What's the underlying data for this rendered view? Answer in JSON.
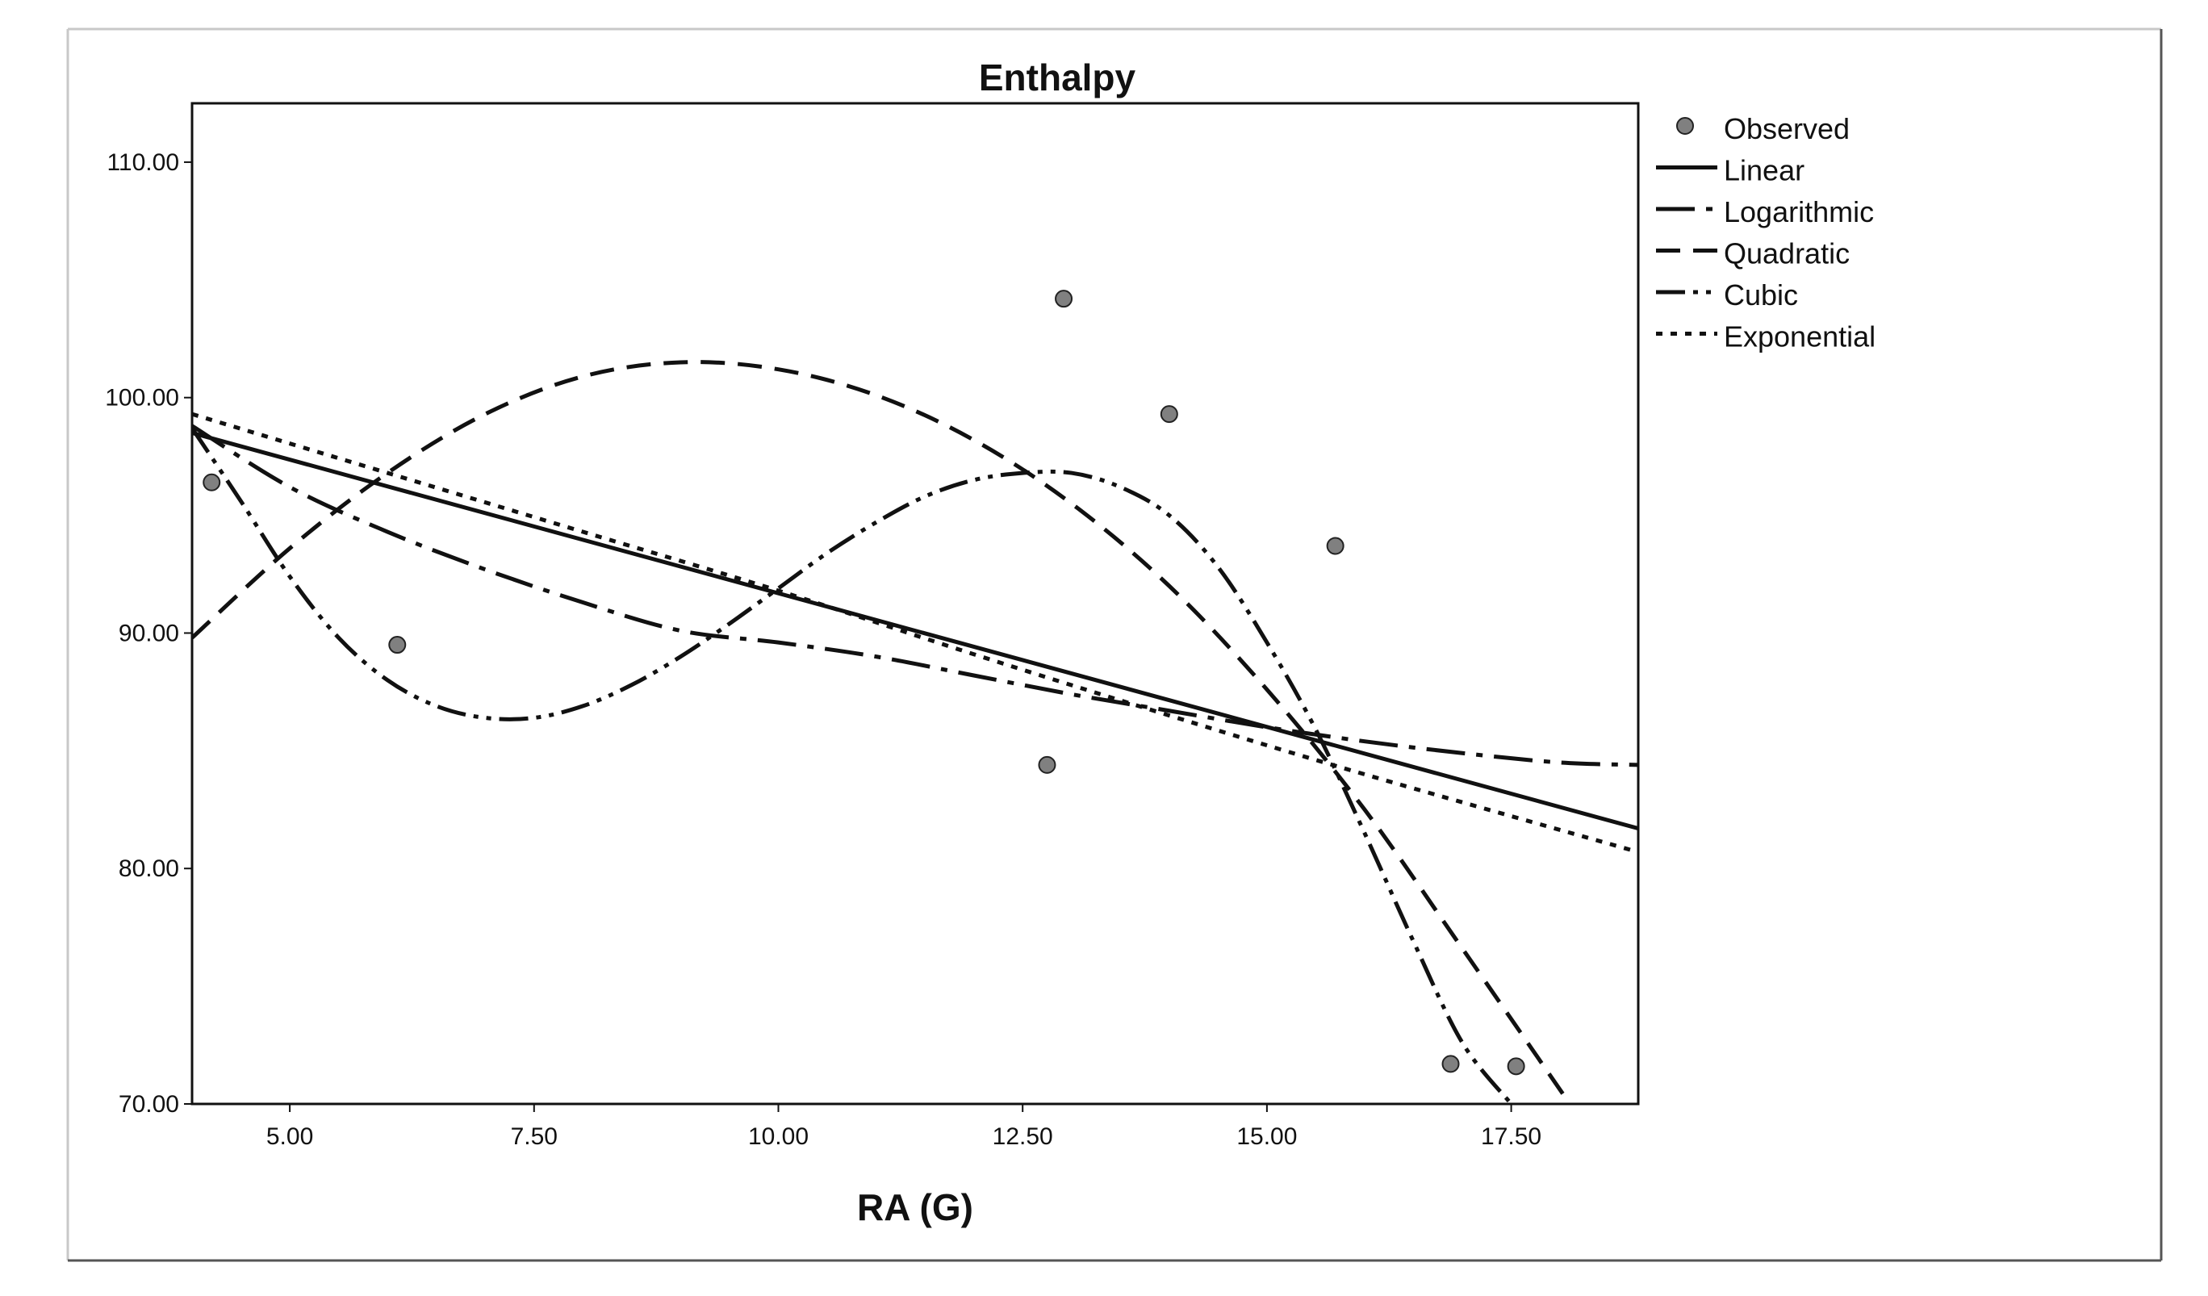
{
  "chart_data": {
    "type": "scatter",
    "title": "Enthalpy",
    "xlabel": "RA (G)",
    "ylabel": "",
    "xlim": [
      4.0,
      18.8
    ],
    "ylim": [
      70,
      112.5
    ],
    "grid": false,
    "legend_position": "right",
    "x_ticks": [
      {
        "value": 5,
        "label": "5.00"
      },
      {
        "value": 7.5,
        "label": "7.50"
      },
      {
        "value": 10,
        "label": "10.00"
      },
      {
        "value": 12.5,
        "label": "12.50"
      },
      {
        "value": 15,
        "label": "15.00"
      },
      {
        "value": 17.5,
        "label": "17.50"
      }
    ],
    "y_ticks": [
      {
        "value": 70,
        "label": "70.00"
      },
      {
        "value": 80,
        "label": "80.00"
      },
      {
        "value": 90,
        "label": "90.00"
      },
      {
        "value": 100,
        "label": "100.00"
      },
      {
        "value": 110,
        "label": "110.00"
      }
    ],
    "observed": {
      "name": "Observed",
      "color": "#808080",
      "points": [
        {
          "x": 4.2,
          "y": 96.4
        },
        {
          "x": 6.1,
          "y": 89.5
        },
        {
          "x": 12.75,
          "y": 84.4
        },
        {
          "x": 12.92,
          "y": 104.2
        },
        {
          "x": 14.0,
          "y": 99.3
        },
        {
          "x": 15.7,
          "y": 93.7
        },
        {
          "x": 16.88,
          "y": 71.7
        },
        {
          "x": 17.55,
          "y": 71.6
        }
      ]
    },
    "series": [
      {
        "name": "Linear",
        "style": "solid",
        "x": [
          4.0,
          18.8
        ],
        "y": [
          98.5,
          81.7
        ]
      },
      {
        "name": "Logarithmic",
        "style": "longdash-dot",
        "x": [
          4.0,
          5.0,
          6.0,
          7.0,
          8.0,
          9.0,
          10.0,
          11.0,
          12.0,
          13.0,
          14.0,
          15.0,
          16.0,
          17.0,
          18.0,
          18.8
        ],
        "y": [
          98.8,
          96.2,
          94.3,
          92.7,
          91.3,
          90.1,
          89.6,
          89.0,
          88.2,
          87.4,
          86.7,
          86.0,
          85.4,
          84.9,
          84.5,
          84.4
        ]
      },
      {
        "name": "Quadratic",
        "style": "dashed",
        "x": [
          4.0,
          5.0,
          6.0,
          7.0,
          8.0,
          9.0,
          10.0,
          11.0,
          12.0,
          13.0,
          14.0,
          15.0,
          16.0,
          17.0,
          18.1
        ],
        "y": [
          89.8,
          93.6,
          96.8,
          99.3,
          100.9,
          101.5,
          101.2,
          100.1,
          98.2,
          95.5,
          92.0,
          87.6,
          82.5,
          76.6,
          70.0
        ]
      },
      {
        "name": "Cubic",
        "style": "dash-dot-dot",
        "x": [
          4.0,
          4.5,
          5.0,
          5.5,
          6.0,
          6.5,
          7.0,
          7.5,
          8.0,
          8.5,
          9.0,
          9.5,
          10.0,
          10.5,
          11.0,
          11.5,
          12.0,
          12.5,
          13.0,
          13.5,
          14.0,
          14.5,
          15.0,
          15.5,
          16.0,
          16.5,
          17.0,
          17.5
        ],
        "y": [
          98.7,
          95.6,
          92.4,
          89.8,
          88.0,
          86.9,
          86.4,
          86.4,
          86.9,
          87.8,
          89.0,
          90.4,
          91.9,
          93.4,
          94.7,
          95.8,
          96.5,
          96.8,
          96.8,
          96.2,
          95.0,
          92.8,
          89.6,
          85.9,
          81.5,
          76.9,
          72.6,
          70.0
        ]
      },
      {
        "name": "Exponential",
        "style": "dotted",
        "x": [
          4.0,
          6.0,
          8.0,
          10.0,
          12.0,
          14.0,
          16.0,
          18.8
        ],
        "y": [
          99.3,
          96.8,
          94.3,
          91.8,
          89.1,
          86.5,
          84.0,
          80.7
        ]
      }
    ]
  }
}
